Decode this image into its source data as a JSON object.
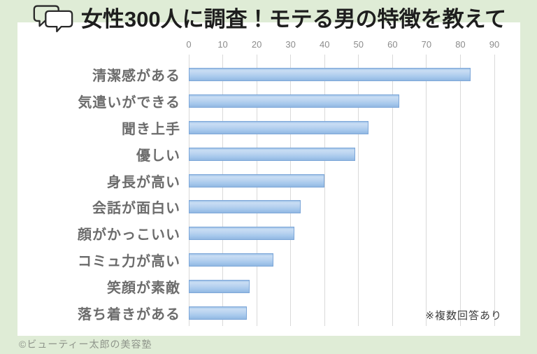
{
  "page": {
    "background_color": "#dfecd6",
    "card_color": "#ffffff",
    "copyright": "©ビューティー太郎の美容塾"
  },
  "header": {
    "icon": "chat-bubbles-icon",
    "title": "女性300人に調査！モテる男の特徴を教えて"
  },
  "chart_data": {
    "type": "bar",
    "orientation": "horizontal",
    "title": "女性300人に調査！モテる男の特徴を教えて",
    "categories": [
      "清潔感がある",
      "気遣いができる",
      "聞き上手",
      "優しい",
      "身長が高い",
      "会話が面白い",
      "顔がかっこいい",
      "コミュ力が高い",
      "笑顔が素敵",
      "落ち着きがある"
    ],
    "values": [
      83,
      62,
      53,
      49,
      40,
      33,
      31,
      25,
      18,
      17
    ],
    "xlabel": "",
    "ylabel": "",
    "xlim": [
      0,
      90
    ],
    "x_ticks": [
      0,
      10,
      20,
      30,
      40,
      50,
      60,
      70,
      80,
      90
    ],
    "grid": true,
    "legend": false,
    "note": "※複数回答あり",
    "bar_fill_color": "#aecbec",
    "bar_border_color": "#7ca6d8",
    "gridline_color": "#d9d9d9",
    "tick_label_color": "#8c8c8c",
    "category_label_color": "#6c6c6c"
  }
}
